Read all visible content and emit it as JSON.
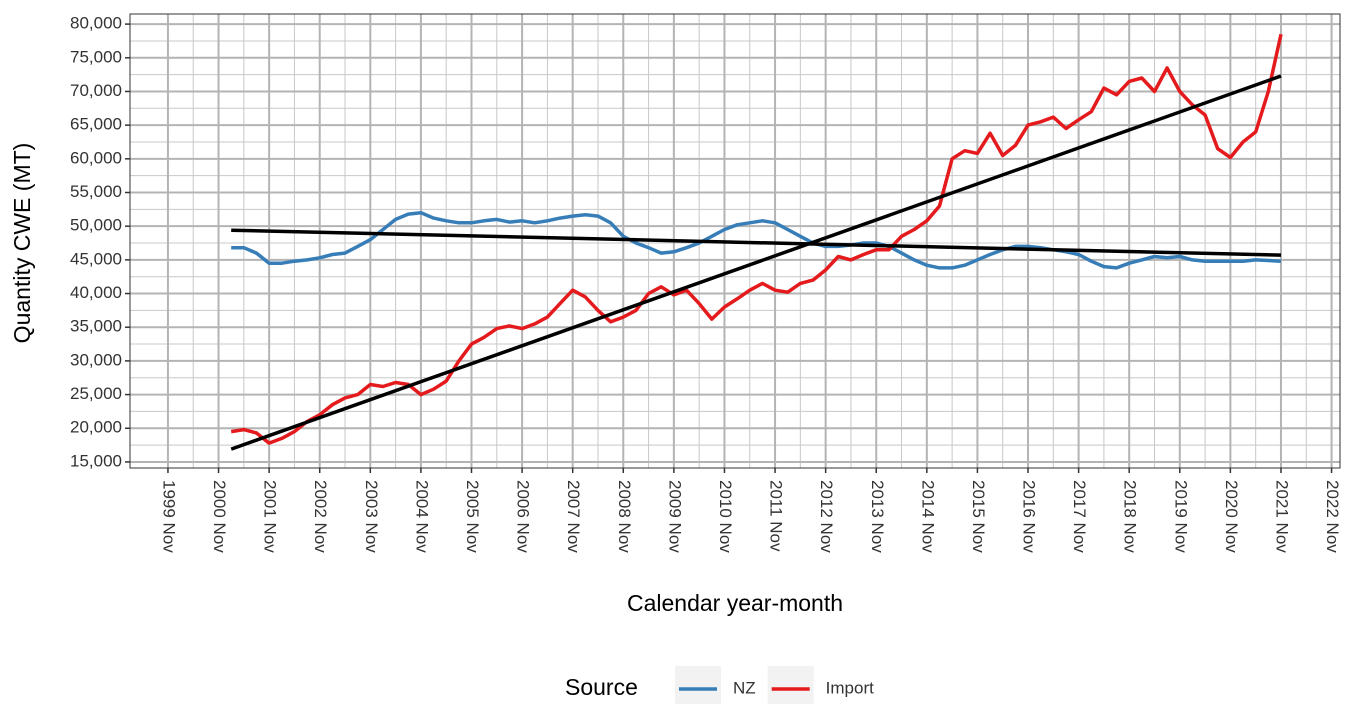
{
  "chart_data": {
    "type": "line",
    "x_label": "Calendar year-month",
    "y_label": "Quantity CWE (MT)",
    "xlim": [
      "1999-02",
      "2023-01"
    ],
    "xticks": [
      {
        "value": "1999-11",
        "label": "1999 Nov"
      },
      {
        "value": "2000-11",
        "label": "2000 Nov"
      },
      {
        "value": "2001-11",
        "label": "2001 Nov"
      },
      {
        "value": "2002-11",
        "label": "2002 Nov"
      },
      {
        "value": "2003-11",
        "label": "2003 Nov"
      },
      {
        "value": "2004-11",
        "label": "2004 Nov"
      },
      {
        "value": "2005-11",
        "label": "2005 Nov"
      },
      {
        "value": "2006-11",
        "label": "2006 Nov"
      },
      {
        "value": "2007-11",
        "label": "2007 Nov"
      },
      {
        "value": "2008-11",
        "label": "2008 Nov"
      },
      {
        "value": "2009-11",
        "label": "2009 Nov"
      },
      {
        "value": "2010-11",
        "label": "2010 Nov"
      },
      {
        "value": "2011-11",
        "label": "2011 Nov"
      },
      {
        "value": "2012-11",
        "label": "2012 Nov"
      },
      {
        "value": "2013-11",
        "label": "2013 Nov"
      },
      {
        "value": "2014-11",
        "label": "2014 Nov"
      },
      {
        "value": "2015-11",
        "label": "2015 Nov"
      },
      {
        "value": "2016-11",
        "label": "2016 Nov"
      },
      {
        "value": "2017-11",
        "label": "2017 Nov"
      },
      {
        "value": "2018-11",
        "label": "2018 Nov"
      },
      {
        "value": "2019-11",
        "label": "2019 Nov"
      },
      {
        "value": "2020-11",
        "label": "2020 Nov"
      },
      {
        "value": "2021-11",
        "label": "2021 Nov"
      },
      {
        "value": "2022-11",
        "label": "2022 Nov"
      }
    ],
    "ylim": [
      14100,
      81500
    ],
    "yticks": [
      {
        "value": 15000,
        "label": "15,000"
      },
      {
        "value": 20000,
        "label": "20,000"
      },
      {
        "value": 25000,
        "label": "25,000"
      },
      {
        "value": 30000,
        "label": "30,000"
      },
      {
        "value": 35000,
        "label": "35,000"
      },
      {
        "value": 40000,
        "label": "40,000"
      },
      {
        "value": 45000,
        "label": "45,000"
      },
      {
        "value": 50000,
        "label": "50,000"
      },
      {
        "value": 55000,
        "label": "55,000"
      },
      {
        "value": 60000,
        "label": "60,000"
      },
      {
        "value": 65000,
        "label": "65,000"
      },
      {
        "value": 70000,
        "label": "70,000"
      },
      {
        "value": 75000,
        "label": "75,000"
      },
      {
        "value": 80000,
        "label": "80,000"
      }
    ],
    "grid": true,
    "minor_grid": true,
    "legend_title": "Source",
    "legend_position": "bottom",
    "x": [
      "2001-02",
      "2001-05",
      "2001-08",
      "2001-11",
      "2002-02",
      "2002-05",
      "2002-08",
      "2002-11",
      "2003-02",
      "2003-05",
      "2003-08",
      "2003-11",
      "2004-02",
      "2004-05",
      "2004-08",
      "2004-11",
      "2005-02",
      "2005-05",
      "2005-08",
      "2005-11",
      "2006-02",
      "2006-05",
      "2006-08",
      "2006-11",
      "2007-02",
      "2007-05",
      "2007-08",
      "2007-11",
      "2008-02",
      "2008-05",
      "2008-08",
      "2008-11",
      "2009-02",
      "2009-05",
      "2009-08",
      "2009-11",
      "2010-02",
      "2010-05",
      "2010-08",
      "2010-11",
      "2011-02",
      "2011-05",
      "2011-08",
      "2011-11",
      "2012-02",
      "2012-05",
      "2012-08",
      "2012-11",
      "2013-02",
      "2013-05",
      "2013-08",
      "2013-11",
      "2014-02",
      "2014-05",
      "2014-08",
      "2014-11",
      "2015-02",
      "2015-05",
      "2015-08",
      "2015-11",
      "2016-02",
      "2016-05",
      "2016-08",
      "2016-11",
      "2017-02",
      "2017-05",
      "2017-08",
      "2017-11",
      "2018-02",
      "2018-05",
      "2018-08",
      "2018-11",
      "2019-02",
      "2019-05",
      "2019-08",
      "2019-11",
      "2020-02",
      "2020-05",
      "2020-08",
      "2020-11",
      "2021-02",
      "2021-05",
      "2021-08",
      "2021-11"
    ],
    "series": [
      {
        "name": "NZ",
        "color": "#377eb8",
        "values": [
          46800,
          46800,
          46000,
          44500,
          44500,
          44800,
          45000,
          45300,
          45800,
          46000,
          47000,
          48000,
          49500,
          51000,
          51800,
          52000,
          51200,
          50800,
          50500,
          50500,
          50800,
          51000,
          50600,
          50800,
          50500,
          50800,
          51200,
          51500,
          51700,
          51500,
          50500,
          48500,
          47500,
          46800,
          46000,
          46200,
          46800,
          47500,
          48500,
          49500,
          50200,
          50500,
          50800,
          50500,
          49500,
          48500,
          47500,
          47000,
          47000,
          47200,
          47500,
          47500,
          47000,
          46000,
          45000,
          44200,
          43800,
          43800,
          44200,
          45000,
          45800,
          46500,
          47000,
          47000,
          46800,
          46500,
          46200,
          45800,
          44800,
          44000,
          43800,
          44500,
          45000,
          45500,
          45300,
          45500,
          45000,
          44800,
          44800,
          44800,
          44800,
          45000,
          44900,
          44800
        ]
      },
      {
        "name": "Import",
        "color": "#e41a1c",
        "values": [
          19500,
          19800,
          19300,
          17800,
          18500,
          19500,
          21000,
          22000,
          23500,
          24500,
          25000,
          26500,
          26200,
          26800,
          26500,
          25000,
          25800,
          27000,
          30000,
          32500,
          33500,
          34800,
          35200,
          34800,
          35500,
          36500,
          38500,
          40500,
          39500,
          37500,
          35800,
          36500,
          37500,
          40000,
          41000,
          39800,
          40500,
          38500,
          36200,
          38000,
          39200,
          40500,
          41500,
          40500,
          40200,
          41500,
          42000,
          43500,
          45500,
          45000,
          45800,
          46500,
          46500,
          48500,
          49500,
          50800,
          53000,
          60000,
          61200,
          60800,
          63800,
          60500,
          62000,
          65000,
          65500,
          66200,
          64500,
          65800,
          67000,
          70500,
          69500,
          71500,
          72000,
          70000,
          73500,
          70000,
          68000,
          66500,
          61500,
          60200,
          62500,
          64000,
          70000,
          78500
        ]
      }
    ],
    "trend_lines": [
      {
        "color": "#000000",
        "x": [
          "2001-02",
          "2021-11"
        ],
        "values": [
          49400,
          45700
        ]
      },
      {
        "color": "#000000",
        "x": [
          "2001-02",
          "2021-11"
        ],
        "values": [
          16900,
          72300
        ]
      }
    ]
  }
}
